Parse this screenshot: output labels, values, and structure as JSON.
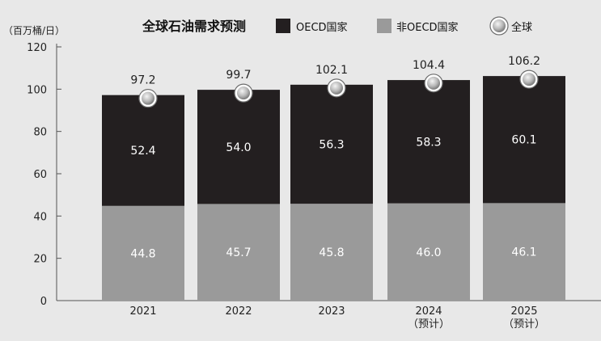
{
  "chart_data": {
    "type": "bar",
    "title": "全球石油需求预测",
    "ylabel": "（百万桶/日）",
    "xlabel": "",
    "ylim": [
      0,
      120
    ],
    "yticks": [
      0,
      20,
      40,
      60,
      80,
      100,
      120
    ],
    "stacked": true,
    "categories": [
      {
        "label": "2021",
        "sublabel": ""
      },
      {
        "label": "2022",
        "sublabel": ""
      },
      {
        "label": "2023",
        "sublabel": ""
      },
      {
        "label": "2024",
        "sublabel": "（预计）"
      },
      {
        "label": "2025",
        "sublabel": "（预计）"
      }
    ],
    "series": [
      {
        "name": "非OECD国家",
        "color": "#9a9a9a",
        "values": [
          44.8,
          45.7,
          45.8,
          46.0,
          46.1
        ]
      },
      {
        "name": "OECD国家",
        "color": "#231f20",
        "values": [
          52.4,
          54.0,
          56.3,
          58.3,
          60.1
        ]
      }
    ],
    "totals": {
      "name": "全球",
      "values": [
        97.2,
        99.7,
        102.1,
        104.4,
        106.2
      ]
    },
    "legend": [
      {
        "name": "OECD国家",
        "marker": "square",
        "color": "#231f20"
      },
      {
        "name": "非OECD国家",
        "marker": "square",
        "color": "#9a9a9a"
      },
      {
        "name": "全球",
        "marker": "circle",
        "color": "#b8b8b8"
      }
    ],
    "legend_position": "top",
    "grid": false
  }
}
